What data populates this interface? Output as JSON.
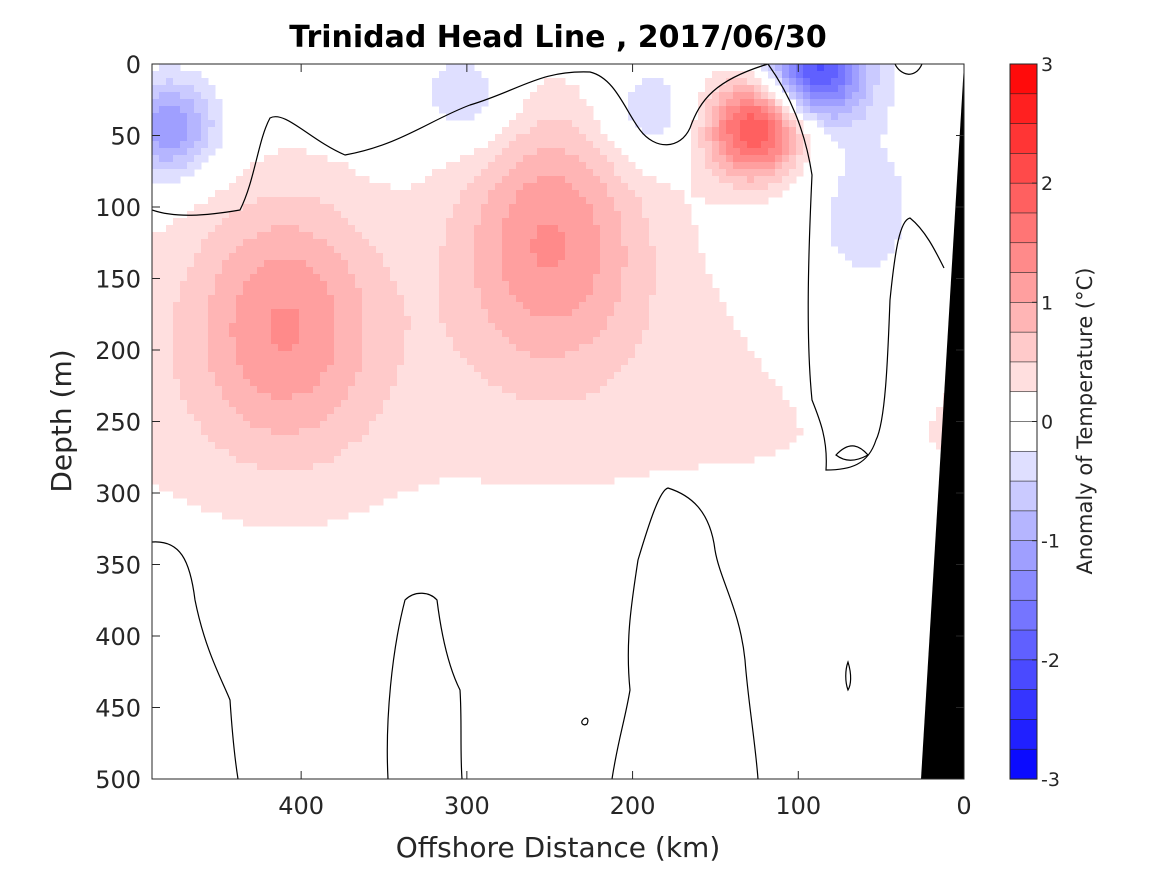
{
  "chart_data": {
    "type": "heatmap",
    "title": "Trinidad Head Line , 2017/06/30",
    "xlabel": "Offshore Distance (km)",
    "ylabel": "Depth (m)",
    "xlim": [
      490,
      0
    ],
    "ylim": [
      0,
      500
    ],
    "x_reversed": true,
    "y_reversed": true,
    "x_ticks": [
      400,
      300,
      200,
      100,
      0
    ],
    "y_ticks": [
      0,
      50,
      100,
      150,
      200,
      250,
      300,
      350,
      400,
      450,
      500
    ],
    "colorbar": {
      "label": "Anomaly of Temperature (°C)",
      "range": [
        -3,
        3
      ],
      "step": 0.25,
      "ticks": [
        3,
        2,
        1,
        0,
        -1,
        -2,
        -3
      ],
      "low_color": "#0000ff",
      "mid_color": "#ffffff",
      "high_color": "#ff0000"
    },
    "grid": false,
    "land_color": "#000000",
    "land": {
      "surface_x_km": 0,
      "bottom_x_km": 26,
      "depth_range_m": [
        0,
        500
      ]
    },
    "zero_contour_color": "#000000",
    "anomaly_features": [
      {
        "x_km": 410,
        "depth_m": 180,
        "anomaly_c": 1.0
      },
      {
        "x_km": 250,
        "depth_m": 120,
        "anomaly_c": 1.1
      },
      {
        "x_km": 125,
        "depth_m": 45,
        "anomaly_c": 2.1
      },
      {
        "x_km": 90,
        "depth_m": 5,
        "anomaly_c": -2.1
      },
      {
        "x_km": 480,
        "depth_m": 45,
        "anomaly_c": -1.3
      },
      {
        "x_km": 300,
        "depth_m": 25,
        "anomaly_c": -0.6
      },
      {
        "x_km": 190,
        "depth_m": 35,
        "anomaly_c": -0.6
      },
      {
        "x_km": 60,
        "depth_m": 120,
        "anomaly_c": -0.5
      }
    ]
  }
}
